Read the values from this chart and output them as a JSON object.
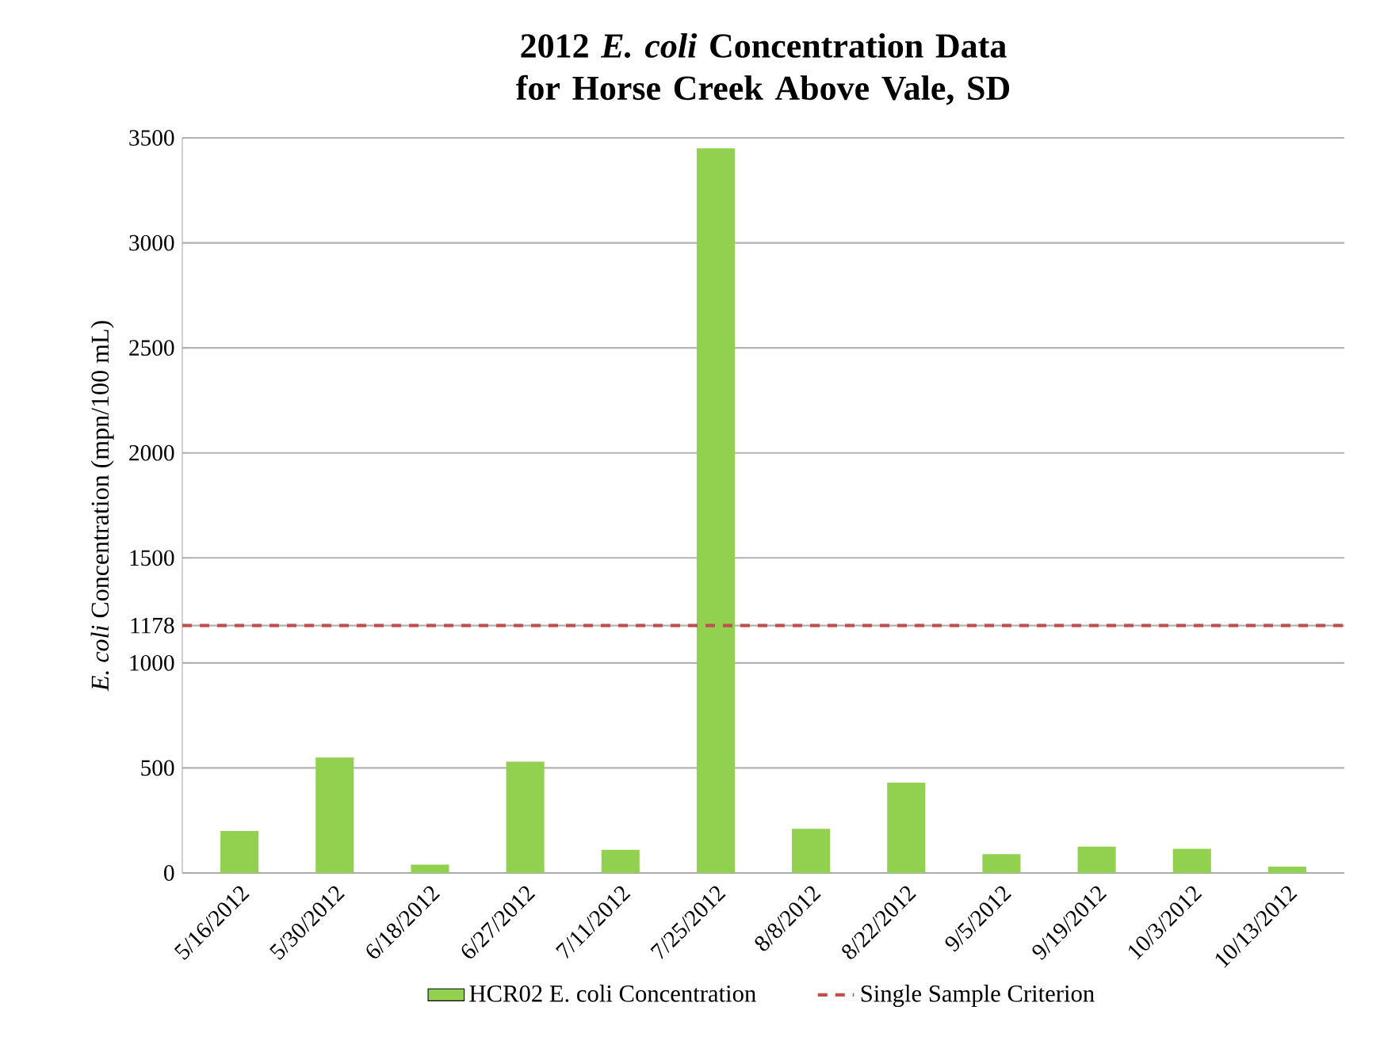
{
  "chart_data": {
    "type": "bar",
    "title": "2012 *E. coli* Concentration Data for Horse Creek Above Vale, SD",
    "ylabel": "*E. coli* Concentration (mpn/100 mL)",
    "categories": [
      "5/16/2012",
      "5/30/2012",
      "6/18/2012",
      "6/27/2012",
      "7/11/2012",
      "7/25/2012",
      "8/8/2012",
      "8/22/2012",
      "9/5/2012",
      "9/19/2012",
      "10/3/2012",
      "10/13/2012"
    ],
    "series": [
      {
        "name": "HCR02 E. coli Concentration",
        "color": "#92d050",
        "values": [
          200,
          550,
          40,
          530,
          110,
          3450,
          210,
          430,
          90,
          125,
          115,
          30
        ]
      }
    ],
    "ylim": [
      0,
      3500
    ],
    "yticks": [
      0,
      500,
      1000,
      1178,
      1500,
      2000,
      2500,
      3000,
      3500
    ],
    "ref_lines": [
      {
        "axis": "y",
        "value": 1178,
        "label": "Single Sample Criterion",
        "color": "#c0504d",
        "line_style": "dashed"
      }
    ],
    "grid": "y",
    "legend": "bottom"
  }
}
